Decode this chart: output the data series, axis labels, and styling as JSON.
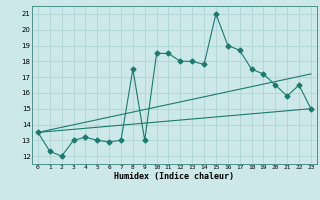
{
  "xlabel": "Humidex (Indice chaleur)",
  "background_color": "#cce8e8",
  "grid_color": "#b0d4d4",
  "line_color": "#1a7a6e",
  "xlim": [
    -0.5,
    23.5
  ],
  "ylim": [
    11.5,
    21.5
  ],
  "yticks": [
    12,
    13,
    14,
    15,
    16,
    17,
    18,
    19,
    20,
    21
  ],
  "xticks": [
    0,
    1,
    2,
    3,
    4,
    5,
    6,
    7,
    8,
    9,
    10,
    11,
    12,
    13,
    14,
    15,
    16,
    17,
    18,
    19,
    20,
    21,
    22,
    23
  ],
  "line1_x": [
    0,
    1,
    2,
    3,
    4,
    5,
    6,
    7,
    8,
    9,
    10,
    11,
    12,
    13,
    14,
    15,
    16,
    17,
    18,
    19,
    20,
    21,
    22,
    23
  ],
  "line1_y": [
    13.5,
    12.3,
    12.0,
    13.0,
    13.2,
    13.0,
    12.9,
    13.0,
    17.5,
    13.0,
    18.5,
    18.5,
    18.0,
    18.0,
    17.8,
    21.0,
    19.0,
    18.7,
    17.5,
    17.2,
    16.5,
    15.8,
    16.5,
    15.0
  ],
  "line2_x": [
    0,
    23
  ],
  "line2_y": [
    13.5,
    15.0
  ],
  "line3_x": [
    0,
    23
  ],
  "line3_y": [
    13.5,
    17.2
  ],
  "markersize": 2.5
}
